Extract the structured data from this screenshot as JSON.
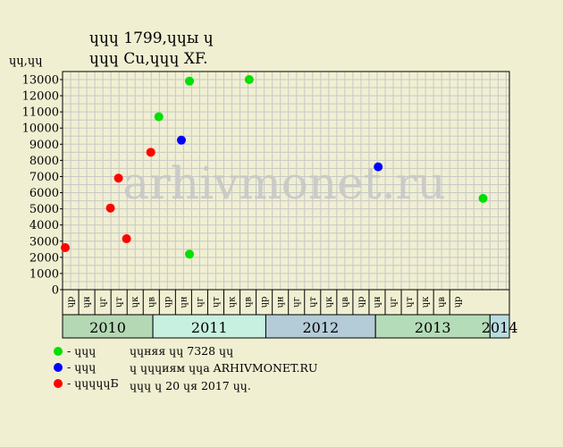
{
  "header": {
    "title_line1": "ɥɥɥ 1799,ɥɥы ɥ",
    "title_line2": "ɥɥɥ Cu,ɥɥɥ XF."
  },
  "watermark": "arhivmonet.ru",
  "legend": [
    {
      "color": "#00e000",
      "label": "- ɥɥɥ"
    },
    {
      "color": "#0000ff",
      "label": "- ɥɥɥ"
    },
    {
      "color": "#ff0000",
      "label": "- ɥɥɥɥɥБ"
    }
  ],
  "footer": {
    "line1": "ɥɥняя ɥɥ 7328 ɥɥ",
    "line2": "ɥ ɥɥɥиям ɥɥа ARHIVMONET.RU",
    "line3": "ɥɥɥ ɥ 20 ɥя 2017 ɥɥ."
  },
  "colors": {
    "background": "#f0efd2",
    "plot_bg": "#f0efd2",
    "grid": "#c8c8c8"
  },
  "chart_data": {
    "type": "scatter",
    "ylabel": "ɥɥ,ɥɥ",
    "ylim": [
      0,
      13000
    ],
    "yticks": [
      0,
      1000,
      2000,
      3000,
      4000,
      5000,
      6000,
      7000,
      8000,
      9000,
      10000,
      11000,
      12000,
      13000
    ],
    "grid": true,
    "months": [
      "ɥр",
      "ɥн",
      "ɥг",
      "ɥт",
      "ɥк",
      "ɥв",
      "ɥр",
      "ɥн",
      "ɥг",
      "ɥт",
      "ɥк",
      "ɥв",
      "ɥр",
      "ɥн",
      "ɥг",
      "ɥт",
      "ɥк",
      "ɥв",
      "ɥр",
      "ɥн",
      "ɥг",
      "ɥт",
      "ɥк",
      "ɥв",
      "ɥр"
    ],
    "years": [
      {
        "label": "2010",
        "color": "#b4d8b4"
      },
      {
        "label": "2011",
        "color": "#c8f0e0"
      },
      {
        "label": "2012",
        "color": "#b4ccd8"
      },
      {
        "label": "2013",
        "color": "#b4dcb8"
      },
      {
        "label": "2014",
        "color": "#b8dce0"
      }
    ],
    "points": [
      {
        "x": 0.5,
        "y": 2600,
        "series": "red"
      },
      {
        "x": 3.3,
        "y": 5050,
        "series": "red"
      },
      {
        "x": 3.8,
        "y": 6900,
        "series": "red"
      },
      {
        "x": 4.3,
        "y": 3150,
        "series": "red"
      },
      {
        "x": 5.8,
        "y": 8500,
        "series": "red"
      },
      {
        "x": 6.3,
        "y": 10700,
        "series": "green"
      },
      {
        "x": 7.7,
        "y": 9250,
        "series": "blue"
      },
      {
        "x": 8.2,
        "y": 12900,
        "series": "green"
      },
      {
        "x": 8.2,
        "y": 2200,
        "series": "green"
      },
      {
        "x": 11.9,
        "y": 13000,
        "series": "green"
      },
      {
        "x": 19.9,
        "y": 7600,
        "series": "blue"
      },
      {
        "x": 26.4,
        "y": 5650,
        "series": "green"
      }
    ],
    "series_colors": {
      "green": "#00e000",
      "blue": "#0000ff",
      "red": "#ff0000"
    }
  }
}
